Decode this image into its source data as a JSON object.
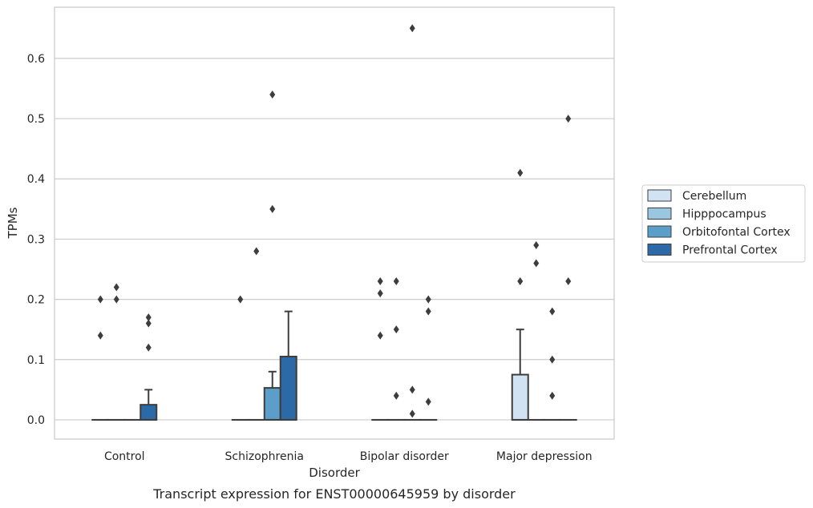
{
  "chart_data": {
    "type": "box",
    "caption": "Transcript expression for ENST00000645959 by disorder",
    "xlabel": "Disorder",
    "ylabel": "TPMs",
    "ylim": [
      -0.032,
      0.685
    ],
    "yticks": [
      "0.0",
      "0.1",
      "0.2",
      "0.3",
      "0.4",
      "0.5",
      "0.6"
    ],
    "grid": "horizontal",
    "legend_position": "right",
    "categories": [
      "Control",
      "Schizophrenia",
      "Bipolar disorder",
      "Major depression"
    ],
    "series": [
      {
        "name": "Cerebellum",
        "color": "#d1e2f2",
        "boxes": [
          {
            "q1": 0,
            "median": 0,
            "q3": 0,
            "whisker_high": 0,
            "outliers": [
              0.14,
              0.2
            ]
          },
          {
            "q1": 0,
            "median": 0,
            "q3": 0,
            "whisker_high": 0,
            "outliers": [
              0.2
            ]
          },
          {
            "q1": 0,
            "median": 0,
            "q3": 0,
            "whisker_high": 0,
            "outliers": [
              0.14,
              0.21,
              0.23
            ]
          },
          {
            "q1": 0,
            "median": 0,
            "q3": 0.075,
            "whisker_high": 0.15,
            "outliers": [
              0.23,
              0.41
            ]
          }
        ]
      },
      {
        "name": "Hipppocampus",
        "color": "#9ac7e0",
        "boxes": [
          {
            "q1": 0,
            "median": 0,
            "q3": 0,
            "whisker_high": 0,
            "outliers": [
              0.2,
              0.22
            ]
          },
          {
            "q1": 0,
            "median": 0,
            "q3": 0,
            "whisker_high": 0,
            "outliers": [
              0.28
            ]
          },
          {
            "q1": 0,
            "median": 0,
            "q3": 0,
            "whisker_high": 0,
            "outliers": [
              0.04,
              0.15,
              0.23
            ]
          },
          {
            "q1": 0,
            "median": 0,
            "q3": 0,
            "whisker_high": 0,
            "outliers": [
              0.26,
              0.29
            ]
          }
        ]
      },
      {
        "name": "Orbitofontal Cortex",
        "color": "#5b9ec9",
        "boxes": [
          {
            "q1": 0,
            "median": 0,
            "q3": 0,
            "whisker_high": 0,
            "outliers": []
          },
          {
            "q1": 0,
            "median": 0,
            "q3": 0.053,
            "whisker_high": 0.08,
            "outliers": [
              0.35,
              0.54
            ]
          },
          {
            "q1": 0,
            "median": 0,
            "q3": 0,
            "whisker_high": 0,
            "outliers": [
              0.01,
              0.05,
              0.65
            ]
          },
          {
            "q1": 0,
            "median": 0,
            "q3": 0,
            "whisker_high": 0,
            "outliers": [
              0.04,
              0.1,
              0.18
            ]
          }
        ]
      },
      {
        "name": "Prefrontal Cortex",
        "color": "#2b6aa7",
        "boxes": [
          {
            "q1": 0,
            "median": 0,
            "q3": 0.025,
            "whisker_high": 0.05,
            "outliers": [
              0.12,
              0.16,
              0.17
            ]
          },
          {
            "q1": 0,
            "median": 0,
            "q3": 0.105,
            "whisker_high": 0.18,
            "outliers": []
          },
          {
            "q1": 0,
            "median": 0,
            "q3": 0,
            "whisker_high": 0,
            "outliers": [
              0.03,
              0.18,
              0.2
            ]
          },
          {
            "q1": 0,
            "median": 0,
            "q3": 0,
            "whisker_high": 0,
            "outliers": [
              0.23,
              0.5
            ]
          }
        ]
      }
    ]
  }
}
